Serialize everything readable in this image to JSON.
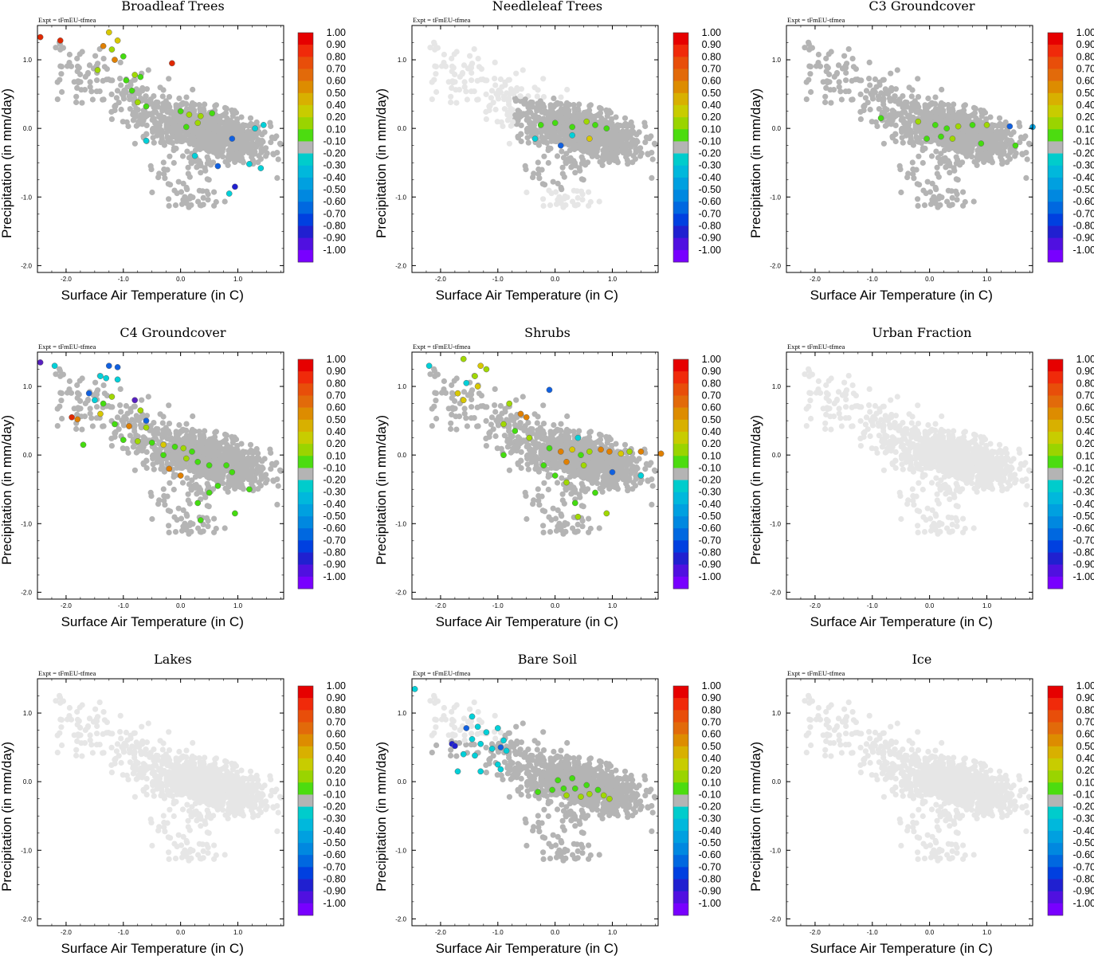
{
  "figure": {
    "expt_label": "Expt = tFmEU-tfmea",
    "xlabel": "Surface Air Temperature (in C)",
    "ylabel": "Precipitation (in mm/day)",
    "xlim": [
      -2.5,
      1.8
    ],
    "ylim": [
      -2.1,
      1.5
    ],
    "x_tick_labels": [
      "-2.0",
      "-1.0",
      "0.0",
      "1.0"
    ],
    "y_tick_labels": [
      "1.0",
      "0.0",
      "-1.0",
      "-2.0"
    ]
  },
  "colorbar": {
    "labels": [
      "1.00",
      "0.90",
      "0.80",
      "0.70",
      "0.60",
      "0.50",
      "0.40",
      "0.20",
      "0.10",
      "-0.10",
      "-0.20",
      "-0.30",
      "-0.40",
      "-0.50",
      "-0.60",
      "-0.70",
      "-0.80",
      "-0.90",
      "-1.00"
    ],
    "colors": [
      "#e60000",
      "#f02a0a",
      "#e84e0a",
      "#e26a0a",
      "#dd8c00",
      "#d8b000",
      "#c8cc00",
      "#9ad400",
      "#4cdc10",
      "#b4b4b4",
      "#00cccc",
      "#00b8dc",
      "#00a0e0",
      "#0088e0",
      "#0068e0",
      "#0040e0",
      "#2020d0",
      "#5010e0",
      "#7800ff"
    ],
    "highlight_colors": {
      "red": "#e02800",
      "orange": "#e08000",
      "yellow": "#d8c800",
      "lime": "#a0d800",
      "green": "#44dc10",
      "cyan": "#00d0d8",
      "lightblue": "#00a8e8",
      "blue": "#1060e0",
      "darkblue": "#2020d0",
      "purple": "#5820c0"
    },
    "neutral_color": "#b4b4b4",
    "faded_color": "#e6e6e6"
  },
  "chart_data": [
    {
      "type": "scatter",
      "title": "Broadleaf Trees",
      "highlights": [
        {
          "x": -2.45,
          "y": 1.33,
          "c": "red"
        },
        {
          "x": -2.1,
          "y": 1.28,
          "c": "red"
        },
        {
          "x": -1.25,
          "y": 1.4,
          "c": "yellow"
        },
        {
          "x": -1.1,
          "y": 1.28,
          "c": "yellow"
        },
        {
          "x": -1.35,
          "y": 1.2,
          "c": "orange"
        },
        {
          "x": -1.2,
          "y": 1.15,
          "c": "lime"
        },
        {
          "x": -1.0,
          "y": 1.05,
          "c": "green"
        },
        {
          "x": -1.15,
          "y": 1.0,
          "c": "orange"
        },
        {
          "x": -0.15,
          "y": 0.95,
          "c": "red"
        },
        {
          "x": -1.45,
          "y": 0.85,
          "c": "lime"
        },
        {
          "x": -0.8,
          "y": 0.78,
          "c": "lime"
        },
        {
          "x": -0.7,
          "y": 0.75,
          "c": "green"
        },
        {
          "x": -0.95,
          "y": 0.7,
          "c": "green"
        },
        {
          "x": -0.85,
          "y": 0.55,
          "c": "green"
        },
        {
          "x": -0.75,
          "y": 0.38,
          "c": "lime"
        },
        {
          "x": -0.6,
          "y": 0.32,
          "c": "green"
        },
        {
          "x": 0.0,
          "y": 0.25,
          "c": "green"
        },
        {
          "x": 0.15,
          "y": 0.2,
          "c": "lime"
        },
        {
          "x": 0.35,
          "y": 0.18,
          "c": "lime"
        },
        {
          "x": 0.55,
          "y": 0.22,
          "c": "green"
        },
        {
          "x": 0.1,
          "y": 0.02,
          "c": "green"
        },
        {
          "x": 0.3,
          "y": 0.08,
          "c": "lime"
        },
        {
          "x": 1.3,
          "y": 0.0,
          "c": "cyan"
        },
        {
          "x": 1.45,
          "y": 0.05,
          "c": "cyan"
        },
        {
          "x": -0.6,
          "y": -0.18,
          "c": "cyan"
        },
        {
          "x": 0.9,
          "y": -0.15,
          "c": "blue"
        },
        {
          "x": 0.25,
          "y": -0.4,
          "c": "cyan"
        },
        {
          "x": 0.65,
          "y": -0.55,
          "c": "blue"
        },
        {
          "x": 1.2,
          "y": -0.52,
          "c": "cyan"
        },
        {
          "x": 1.4,
          "y": -0.58,
          "c": "cyan"
        },
        {
          "x": 0.95,
          "y": -0.85,
          "c": "darkblue"
        },
        {
          "x": 0.85,
          "y": -0.95,
          "c": "cyan"
        }
      ]
    },
    {
      "type": "scatter",
      "title": "Needleleaf Trees",
      "highlights": [
        {
          "x": -0.25,
          "y": 0.05,
          "c": "green"
        },
        {
          "x": 0.0,
          "y": 0.08,
          "c": "green"
        },
        {
          "x": 0.3,
          "y": 0.02,
          "c": "green"
        },
        {
          "x": 0.55,
          "y": 0.1,
          "c": "lime"
        },
        {
          "x": 0.7,
          "y": 0.05,
          "c": "green"
        },
        {
          "x": 0.9,
          "y": 0.0,
          "c": "green"
        },
        {
          "x": 0.6,
          "y": -0.15,
          "c": "yellow"
        },
        {
          "x": 0.3,
          "y": -0.1,
          "c": "cyan"
        },
        {
          "x": -0.35,
          "y": -0.15,
          "c": "cyan"
        },
        {
          "x": 0.1,
          "y": -0.25,
          "c": "blue"
        }
      ]
    },
    {
      "type": "scatter",
      "title": "C3 Groundcover",
      "highlights": [
        {
          "x": -0.85,
          "y": 0.15,
          "c": "green"
        },
        {
          "x": -0.2,
          "y": 0.1,
          "c": "lime"
        },
        {
          "x": 0.1,
          "y": 0.05,
          "c": "green"
        },
        {
          "x": 0.3,
          "y": 0.0,
          "c": "green"
        },
        {
          "x": 0.5,
          "y": 0.03,
          "c": "lime"
        },
        {
          "x": 0.75,
          "y": 0.05,
          "c": "green"
        },
        {
          "x": 1.0,
          "y": 0.05,
          "c": "lime"
        },
        {
          "x": 0.2,
          "y": -0.12,
          "c": "green"
        },
        {
          "x": 0.4,
          "y": -0.15,
          "c": "lime"
        },
        {
          "x": -0.05,
          "y": -0.15,
          "c": "green"
        },
        {
          "x": 0.9,
          "y": -0.22,
          "c": "green"
        },
        {
          "x": 1.5,
          "y": -0.25,
          "c": "green"
        },
        {
          "x": 1.4,
          "y": 0.03,
          "c": "blue"
        },
        {
          "x": 1.8,
          "y": 0.02,
          "c": "lightblue"
        }
      ]
    },
    {
      "type": "scatter",
      "title": "C4 Groundcover",
      "highlights": [
        {
          "x": -2.45,
          "y": 1.35,
          "c": "purple"
        },
        {
          "x": -2.2,
          "y": 1.3,
          "c": "cyan"
        },
        {
          "x": -1.25,
          "y": 1.3,
          "c": "blue"
        },
        {
          "x": -1.1,
          "y": 1.28,
          "c": "blue"
        },
        {
          "x": -1.4,
          "y": 1.15,
          "c": "cyan"
        },
        {
          "x": -1.3,
          "y": 1.12,
          "c": "cyan"
        },
        {
          "x": -1.1,
          "y": 1.1,
          "c": "cyan"
        },
        {
          "x": -1.6,
          "y": 0.9,
          "c": "blue"
        },
        {
          "x": -1.5,
          "y": 0.8,
          "c": "cyan"
        },
        {
          "x": -1.35,
          "y": 0.75,
          "c": "green"
        },
        {
          "x": -1.2,
          "y": 0.85,
          "c": "lime"
        },
        {
          "x": -0.8,
          "y": 0.8,
          "c": "purple"
        },
        {
          "x": -0.7,
          "y": 0.65,
          "c": "lime"
        },
        {
          "x": -1.9,
          "y": 0.55,
          "c": "red"
        },
        {
          "x": -1.8,
          "y": 0.52,
          "c": "orange"
        },
        {
          "x": -1.4,
          "y": 0.6,
          "c": "yellow"
        },
        {
          "x": -1.15,
          "y": 0.45,
          "c": "green"
        },
        {
          "x": -0.9,
          "y": 0.42,
          "c": "orange"
        },
        {
          "x": -0.6,
          "y": 0.4,
          "c": "lime"
        },
        {
          "x": -1.0,
          "y": 0.22,
          "c": "green"
        },
        {
          "x": -0.75,
          "y": 0.2,
          "c": "lime"
        },
        {
          "x": -0.5,
          "y": 0.18,
          "c": "green"
        },
        {
          "x": -0.3,
          "y": 0.15,
          "c": "yellow"
        },
        {
          "x": -0.1,
          "y": 0.12,
          "c": "green"
        },
        {
          "x": 0.05,
          "y": 0.1,
          "c": "lime"
        },
        {
          "x": 0.2,
          "y": 0.05,
          "c": "green"
        },
        {
          "x": -0.3,
          "y": 0.0,
          "c": "green"
        },
        {
          "x": 0.1,
          "y": -0.05,
          "c": "lime"
        },
        {
          "x": 0.3,
          "y": -0.1,
          "c": "green"
        },
        {
          "x": 0.5,
          "y": -0.15,
          "c": "green"
        },
        {
          "x": 0.8,
          "y": -0.15,
          "c": "green"
        },
        {
          "x": 0.9,
          "y": -0.25,
          "c": "green"
        },
        {
          "x": -0.2,
          "y": -0.2,
          "c": "orange"
        },
        {
          "x": 0.0,
          "y": -0.3,
          "c": "orange"
        },
        {
          "x": -1.7,
          "y": 0.15,
          "c": "green"
        },
        {
          "x": 0.5,
          "y": -0.55,
          "c": "green"
        },
        {
          "x": 0.65,
          "y": -0.45,
          "c": "green"
        },
        {
          "x": 1.2,
          "y": -0.5,
          "c": "green"
        },
        {
          "x": 0.3,
          "y": -0.7,
          "c": "green"
        },
        {
          "x": 0.95,
          "y": -0.85,
          "c": "green"
        },
        {
          "x": 0.35,
          "y": -0.95,
          "c": "green"
        },
        {
          "x": -0.6,
          "y": 0.5,
          "c": "blue"
        }
      ]
    },
    {
      "type": "scatter",
      "title": "Shrubs",
      "highlights": [
        {
          "x": -2.2,
          "y": 1.3,
          "c": "cyan"
        },
        {
          "x": -1.6,
          "y": 1.4,
          "c": "lime"
        },
        {
          "x": -1.3,
          "y": 1.3,
          "c": "yellow"
        },
        {
          "x": -1.2,
          "y": 1.25,
          "c": "lime"
        },
        {
          "x": -1.4,
          "y": 1.15,
          "c": "lime"
        },
        {
          "x": -1.55,
          "y": 1.05,
          "c": "cyan"
        },
        {
          "x": -1.35,
          "y": 1.0,
          "c": "yellow"
        },
        {
          "x": -1.7,
          "y": 0.9,
          "c": "yellow"
        },
        {
          "x": -1.6,
          "y": 0.8,
          "c": "yellow"
        },
        {
          "x": -0.1,
          "y": 0.95,
          "c": "blue"
        },
        {
          "x": -0.8,
          "y": 0.75,
          "c": "lime"
        },
        {
          "x": -0.6,
          "y": 0.6,
          "c": "orange"
        },
        {
          "x": -0.5,
          "y": 0.55,
          "c": "orange"
        },
        {
          "x": -0.9,
          "y": 0.45,
          "c": "lime"
        },
        {
          "x": -0.7,
          "y": 0.35,
          "c": "green"
        },
        {
          "x": -0.45,
          "y": 0.25,
          "c": "lime"
        },
        {
          "x": -0.1,
          "y": 0.1,
          "c": "green"
        },
        {
          "x": 0.1,
          "y": 0.05,
          "c": "orange"
        },
        {
          "x": 0.3,
          "y": 0.08,
          "c": "yellow"
        },
        {
          "x": 0.45,
          "y": 0.0,
          "c": "green"
        },
        {
          "x": 0.6,
          "y": 0.05,
          "c": "lime"
        },
        {
          "x": 0.8,
          "y": 0.08,
          "c": "orange"
        },
        {
          "x": 0.95,
          "y": 0.05,
          "c": "orange"
        },
        {
          "x": 1.15,
          "y": 0.02,
          "c": "yellow"
        },
        {
          "x": 1.3,
          "y": 0.05,
          "c": "lime"
        },
        {
          "x": 1.5,
          "y": 0.05,
          "c": "orange"
        },
        {
          "x": 1.85,
          "y": 0.02,
          "c": "orange"
        },
        {
          "x": 0.2,
          "y": -0.1,
          "c": "orange"
        },
        {
          "x": 0.5,
          "y": -0.15,
          "c": "lime"
        },
        {
          "x": -0.2,
          "y": -0.15,
          "c": "green"
        },
        {
          "x": 0.0,
          "y": -0.3,
          "c": "green"
        },
        {
          "x": 0.4,
          "y": 0.25,
          "c": "cyan"
        },
        {
          "x": 1.0,
          "y": -0.25,
          "c": "blue"
        },
        {
          "x": 1.5,
          "y": -0.3,
          "c": "cyan"
        },
        {
          "x": 0.2,
          "y": -0.4,
          "c": "lime"
        },
        {
          "x": 0.7,
          "y": -0.55,
          "c": "green"
        },
        {
          "x": 0.35,
          "y": -0.7,
          "c": "green"
        },
        {
          "x": 0.9,
          "y": -0.85,
          "c": "lime"
        },
        {
          "x": 0.4,
          "y": -0.9,
          "c": "lime"
        },
        {
          "x": -0.9,
          "y": 0.0,
          "c": "green"
        }
      ]
    },
    {
      "type": "scatter",
      "title": "Urban Fraction",
      "highlights": []
    },
    {
      "type": "scatter",
      "title": "Lakes",
      "highlights": []
    },
    {
      "type": "scatter",
      "title": "Bare Soil",
      "highlights": [
        {
          "x": -2.45,
          "y": 1.35,
          "c": "cyan"
        },
        {
          "x": -1.8,
          "y": 0.55,
          "c": "darkblue"
        },
        {
          "x": -1.75,
          "y": 0.52,
          "c": "darkblue"
        },
        {
          "x": -1.45,
          "y": 0.95,
          "c": "cyan"
        },
        {
          "x": -1.55,
          "y": 0.78,
          "c": "blue"
        },
        {
          "x": -1.35,
          "y": 0.8,
          "c": "cyan"
        },
        {
          "x": -1.2,
          "y": 0.72,
          "c": "cyan"
        },
        {
          "x": -1.0,
          "y": 0.78,
          "c": "cyan"
        },
        {
          "x": -1.45,
          "y": 0.62,
          "c": "cyan"
        },
        {
          "x": -1.3,
          "y": 0.55,
          "c": "cyan"
        },
        {
          "x": -0.9,
          "y": 0.6,
          "c": "cyan"
        },
        {
          "x": -1.1,
          "y": 0.48,
          "c": "cyan"
        },
        {
          "x": -1.6,
          "y": 0.4,
          "c": "cyan"
        },
        {
          "x": -1.4,
          "y": 0.38,
          "c": "cyan"
        },
        {
          "x": -0.95,
          "y": 0.5,
          "c": "blue"
        },
        {
          "x": -0.85,
          "y": 0.45,
          "c": "cyan"
        },
        {
          "x": -1.0,
          "y": 0.25,
          "c": "cyan"
        },
        {
          "x": -1.7,
          "y": 0.15,
          "c": "cyan"
        },
        {
          "x": -1.3,
          "y": 0.15,
          "c": "cyan"
        },
        {
          "x": -0.95,
          "y": 0.18,
          "c": "cyan"
        },
        {
          "x": -0.3,
          "y": -0.15,
          "c": "green"
        },
        {
          "x": -0.05,
          "y": -0.12,
          "c": "green"
        },
        {
          "x": 0.15,
          "y": -0.1,
          "c": "green"
        },
        {
          "x": 0.35,
          "y": -0.1,
          "c": "green"
        },
        {
          "x": 0.55,
          "y": -0.05,
          "c": "green"
        },
        {
          "x": 0.75,
          "y": -0.12,
          "c": "green"
        },
        {
          "x": 0.85,
          "y": -0.2,
          "c": "lime"
        },
        {
          "x": 0.95,
          "y": -0.25,
          "c": "lime"
        },
        {
          "x": 0.2,
          "y": -0.2,
          "c": "lime"
        },
        {
          "x": 0.45,
          "y": -0.22,
          "c": "lime"
        },
        {
          "x": 0.6,
          "y": -0.18,
          "c": "lime"
        },
        {
          "x": 0.05,
          "y": 0.02,
          "c": "green"
        },
        {
          "x": 0.3,
          "y": 0.05,
          "c": "green"
        }
      ]
    },
    {
      "type": "scatter",
      "title": "Ice",
      "highlights": []
    }
  ]
}
